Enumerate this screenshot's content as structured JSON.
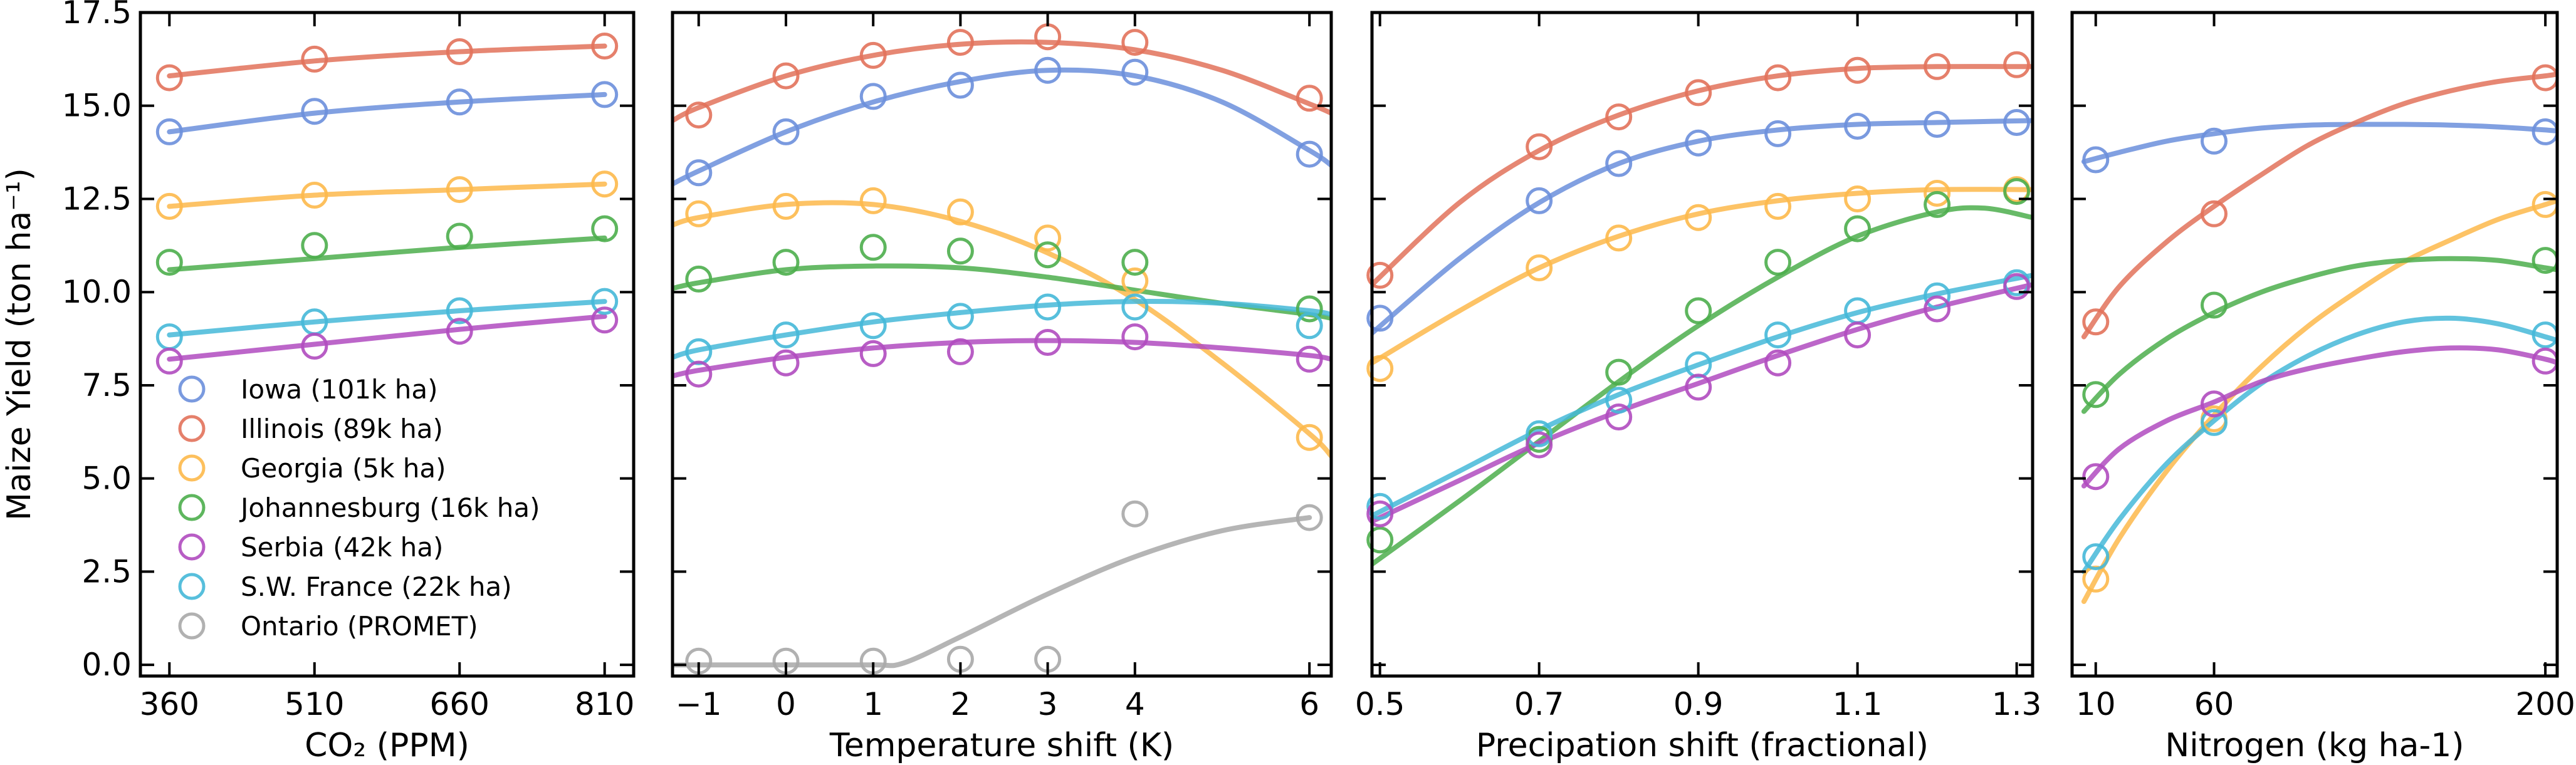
{
  "colors": {
    "Iowa": "#6b8fdc",
    "Illinois": "#e2725b",
    "Georgia": "#fdb94b",
    "Johannesburg": "#4cae4c",
    "Serbia": "#b04bbf",
    "SW France": "#45b8d8",
    "Ontario": "#a8a8a8"
  },
  "legend": [
    {
      "key": "Iowa",
      "label": "Iowa (101k ha)"
    },
    {
      "key": "Illinois",
      "label": "Illinois (89k ha)"
    },
    {
      "key": "Georgia",
      "label": "Georgia (5k ha)"
    },
    {
      "key": "Johannesburg",
      "label": "Johannesburg (16k ha)"
    },
    {
      "key": "Serbia",
      "label": "Serbia (42k ha)"
    },
    {
      "key": "SW France",
      "label": "S.W. France (22k ha)"
    },
    {
      "key": "Ontario",
      "label": "Ontario (PROMET)"
    }
  ],
  "chart_data": [
    {
      "type": "scatter",
      "ylabel": "Maize Yield (ton ha⁻¹)",
      "xlabel": "CO₂ (PPM)",
      "xlim": [
        330,
        840
      ],
      "ylim": [
        -0.3,
        17.5
      ],
      "xticks": [
        360,
        510,
        660,
        810
      ],
      "yticks": [
        0.0,
        2.5,
        5.0,
        7.5,
        10.0,
        12.5,
        15.0,
        17.5
      ],
      "ytick_labels": [
        "0.0",
        "2.5",
        "5.0",
        "7.5",
        "10.0",
        "12.5",
        "15.0",
        "17.5"
      ],
      "series": [
        {
          "key": "Illinois",
          "x": [
            360,
            510,
            660,
            810
          ],
          "y": [
            15.75,
            16.25,
            16.45,
            16.6
          ],
          "fit_x": [
            360,
            510,
            660,
            810
          ],
          "fit_y": [
            15.8,
            16.2,
            16.45,
            16.6
          ]
        },
        {
          "key": "Iowa",
          "x": [
            360,
            510,
            660,
            810
          ],
          "y": [
            14.3,
            14.85,
            15.1,
            15.3
          ],
          "fit_x": [
            360,
            510,
            660,
            810
          ],
          "fit_y": [
            14.3,
            14.8,
            15.1,
            15.3
          ]
        },
        {
          "key": "Georgia",
          "x": [
            360,
            510,
            660,
            810
          ],
          "y": [
            12.3,
            12.6,
            12.75,
            12.9
          ],
          "fit_x": [
            360,
            510,
            660,
            810
          ],
          "fit_y": [
            12.3,
            12.6,
            12.75,
            12.9
          ]
        },
        {
          "key": "Johannesburg",
          "x": [
            360,
            510,
            660,
            810
          ],
          "y": [
            10.8,
            11.25,
            11.5,
            11.7
          ],
          "fit_x": [
            360,
            510,
            660,
            810
          ],
          "fit_y": [
            10.6,
            10.9,
            11.2,
            11.45
          ]
        },
        {
          "key": "SW France",
          "x": [
            360,
            510,
            660,
            810
          ],
          "y": [
            8.8,
            9.2,
            9.5,
            9.75
          ],
          "fit_x": [
            360,
            510,
            660,
            810
          ],
          "fit_y": [
            8.85,
            9.2,
            9.5,
            9.75
          ]
        },
        {
          "key": "Serbia",
          "x": [
            360,
            510,
            660,
            810
          ],
          "y": [
            8.15,
            8.55,
            8.95,
            9.25
          ],
          "fit_x": [
            360,
            510,
            660,
            810
          ],
          "fit_y": [
            8.2,
            8.6,
            9.0,
            9.35
          ]
        }
      ]
    },
    {
      "type": "scatter",
      "xlabel": "Temperature shift (K)",
      "xlim": [
        -1.3,
        6.25
      ],
      "ylim": [
        -0.3,
        17.5
      ],
      "xticks": [
        -1,
        0,
        1,
        2,
        3,
        4,
        6
      ],
      "xtick_labels": [
        "−1",
        "0",
        "1",
        "2",
        "3",
        "4",
        "6"
      ],
      "series": [
        {
          "key": "Illinois",
          "x": [
            -1,
            0,
            1,
            2,
            3,
            4,
            6
          ],
          "y": [
            14.75,
            15.8,
            16.35,
            16.7,
            16.85,
            16.7,
            15.2
          ],
          "fit_x": [
            -1.3,
            -1,
            0,
            1,
            2,
            3,
            4,
            5,
            6,
            6.25
          ],
          "fit_y": [
            14.6,
            14.95,
            15.8,
            16.35,
            16.65,
            16.7,
            16.5,
            15.95,
            15.05,
            14.8
          ]
        },
        {
          "key": "Iowa",
          "x": [
            -1,
            0,
            1,
            2,
            3,
            4,
            6
          ],
          "y": [
            13.2,
            14.3,
            15.25,
            15.55,
            15.95,
            15.9,
            13.7
          ],
          "fit_x": [
            -1.3,
            -1,
            0,
            1,
            2,
            3,
            4,
            5,
            6,
            6.25
          ],
          "fit_y": [
            12.9,
            13.25,
            14.3,
            15.1,
            15.65,
            15.95,
            15.8,
            15.1,
            13.8,
            13.4
          ]
        },
        {
          "key": "Georgia",
          "x": [
            -1,
            0,
            1,
            2,
            3,
            4,
            6
          ],
          "y": [
            12.1,
            12.3,
            12.45,
            12.15,
            11.45,
            10.3,
            6.1
          ],
          "fit_x": [
            -1.3,
            -1,
            0,
            1,
            2,
            3,
            4,
            5,
            6,
            6.25
          ],
          "fit_y": [
            11.8,
            12.0,
            12.35,
            12.35,
            11.9,
            11.05,
            9.8,
            8.1,
            6.2,
            5.6
          ]
        },
        {
          "key": "Johannesburg",
          "x": [
            -1,
            0,
            1,
            2,
            3,
            4,
            6
          ],
          "y": [
            10.35,
            10.8,
            11.2,
            11.1,
            11.0,
            10.8,
            9.55
          ],
          "fit_x": [
            -1.3,
            -1,
            0,
            1,
            2,
            3,
            4,
            5,
            6,
            6.25
          ],
          "fit_y": [
            10.1,
            10.25,
            10.6,
            10.7,
            10.65,
            10.4,
            10.05,
            9.7,
            9.4,
            9.3
          ]
        },
        {
          "key": "SW France",
          "x": [
            -1,
            0,
            1,
            2,
            3,
            4,
            6
          ],
          "y": [
            8.4,
            8.85,
            9.1,
            9.35,
            9.6,
            9.6,
            9.1
          ],
          "fit_x": [
            -1.3,
            -1,
            0,
            1,
            2,
            3,
            4,
            5,
            6,
            6.25
          ],
          "fit_y": [
            8.25,
            8.45,
            8.85,
            9.2,
            9.45,
            9.65,
            9.75,
            9.7,
            9.5,
            9.4
          ]
        },
        {
          "key": "Serbia",
          "x": [
            -1,
            0,
            1,
            2,
            3,
            4,
            6
          ],
          "y": [
            7.8,
            8.1,
            8.35,
            8.4,
            8.65,
            8.8,
            8.2
          ],
          "fit_x": [
            -1.3,
            -1,
            0,
            1,
            2,
            3,
            4,
            5,
            6,
            6.25
          ],
          "fit_y": [
            7.75,
            7.9,
            8.25,
            8.5,
            8.65,
            8.7,
            8.65,
            8.5,
            8.3,
            8.2
          ]
        },
        {
          "key": "Ontario",
          "x": [
            -1,
            0,
            1,
            2,
            3,
            4,
            6
          ],
          "y": [
            0.1,
            0.1,
            0.1,
            0.15,
            0.15,
            4.05,
            3.95
          ],
          "fit_x": [
            -1.3,
            0,
            1,
            1.35,
            2,
            3,
            4,
            5,
            6
          ],
          "fit_y": [
            0.0,
            0.0,
            0.0,
            0.05,
            0.75,
            1.9,
            2.9,
            3.6,
            3.95
          ]
        }
      ]
    },
    {
      "type": "scatter",
      "xlabel": "Precipation shift (fractional)",
      "xlim": [
        0.49,
        1.32
      ],
      "ylim": [
        -0.3,
        17.5
      ],
      "xticks": [
        0.5,
        0.7,
        0.9,
        1.1,
        1.3
      ],
      "xtick_labels": [
        "0.5",
        "0.7",
        "0.9",
        "1.1",
        "1.3"
      ],
      "series": [
        {
          "key": "Illinois",
          "x": [
            0.5,
            0.7,
            0.8,
            0.9,
            1.0,
            1.1,
            1.2,
            1.3
          ],
          "y": [
            10.45,
            13.9,
            14.7,
            15.35,
            15.75,
            15.95,
            16.05,
            16.1
          ],
          "fit_x": [
            0.49,
            0.6,
            0.7,
            0.8,
            0.9,
            1.0,
            1.1,
            1.2,
            1.32
          ],
          "fit_y": [
            10.2,
            12.4,
            13.8,
            14.75,
            15.4,
            15.8,
            16.0,
            16.05,
            16.05
          ]
        },
        {
          "key": "Iowa",
          "x": [
            0.5,
            0.7,
            0.8,
            0.9,
            1.0,
            1.1,
            1.2,
            1.3
          ],
          "y": [
            9.3,
            12.45,
            13.45,
            14.0,
            14.25,
            14.45,
            14.5,
            14.55
          ],
          "fit_x": [
            0.49,
            0.6,
            0.7,
            0.8,
            0.9,
            1.0,
            1.1,
            1.2,
            1.32
          ],
          "fit_y": [
            8.9,
            10.9,
            12.4,
            13.45,
            14.05,
            14.35,
            14.5,
            14.55,
            14.6
          ]
        },
        {
          "key": "Georgia",
          "x": [
            0.5,
            0.7,
            0.8,
            0.9,
            1.0,
            1.1,
            1.2,
            1.3
          ],
          "y": [
            7.95,
            10.65,
            11.45,
            12.0,
            12.3,
            12.5,
            12.65,
            12.75
          ],
          "fit_x": [
            0.49,
            0.6,
            0.7,
            0.8,
            0.9,
            1.0,
            1.1,
            1.2,
            1.32
          ],
          "fit_y": [
            8.1,
            9.5,
            10.65,
            11.5,
            12.1,
            12.45,
            12.65,
            12.75,
            12.75
          ]
        },
        {
          "key": "Johannesburg",
          "x": [
            0.5,
            0.7,
            0.8,
            0.9,
            1.0,
            1.1,
            1.2,
            1.3
          ],
          "y": [
            3.35,
            6.05,
            7.85,
            9.5,
            10.8,
            11.7,
            12.35,
            12.7
          ],
          "fit_x": [
            0.49,
            0.6,
            0.7,
            0.8,
            0.9,
            1.0,
            1.1,
            1.2,
            1.26,
            1.32
          ],
          "fit_y": [
            2.7,
            4.4,
            6.0,
            7.6,
            9.1,
            10.4,
            11.5,
            12.15,
            12.25,
            12.0
          ]
        },
        {
          "key": "SW France",
          "x": [
            0.5,
            0.7,
            0.8,
            0.9,
            1.0,
            1.1,
            1.2,
            1.3
          ],
          "y": [
            4.25,
            6.2,
            7.1,
            8.05,
            8.85,
            9.5,
            9.9,
            10.25
          ],
          "fit_x": [
            0.49,
            0.6,
            0.7,
            0.8,
            0.9,
            1.0,
            1.1,
            1.2,
            1.32
          ],
          "fit_y": [
            4.0,
            5.2,
            6.3,
            7.25,
            8.05,
            8.8,
            9.45,
            9.95,
            10.45
          ]
        },
        {
          "key": "Serbia",
          "x": [
            0.5,
            0.7,
            0.8,
            0.9,
            1.0,
            1.1,
            1.2,
            1.3
          ],
          "y": [
            4.05,
            5.9,
            6.65,
            7.45,
            8.1,
            8.85,
            9.55,
            10.15
          ],
          "fit_x": [
            0.49,
            0.6,
            0.7,
            0.8,
            0.9,
            1.0,
            1.1,
            1.2,
            1.32
          ],
          "fit_y": [
            3.85,
            4.95,
            5.95,
            6.8,
            7.55,
            8.3,
            9.0,
            9.6,
            10.2
          ]
        }
      ]
    },
    {
      "type": "scatter",
      "xlabel": "Nitrogen (kg ha-1)",
      "xlim": [
        0,
        205
      ],
      "ylim": [
        -0.3,
        17.5
      ],
      "xticks": [
        10,
        60,
        200
      ],
      "xtick_labels": [
        "10",
        "60",
        "200"
      ],
      "series": [
        {
          "key": "Iowa",
          "x": [
            10,
            60,
            200
          ],
          "y": [
            13.55,
            14.05,
            14.3
          ],
          "fit_x": [
            5,
            20,
            40,
            60,
            80,
            100,
            120,
            140,
            160,
            180,
            200,
            205
          ],
          "fit_y": [
            13.5,
            13.75,
            14.05,
            14.25,
            14.4,
            14.48,
            14.5,
            14.5,
            14.48,
            14.43,
            14.35,
            14.32
          ]
        },
        {
          "key": "Illinois",
          "x": [
            10,
            60,
            200
          ],
          "y": [
            9.2,
            12.1,
            15.75
          ],
          "fit_x": [
            5,
            20,
            40,
            60,
            80,
            100,
            120,
            140,
            160,
            180,
            200,
            205
          ],
          "fit_y": [
            8.8,
            10.15,
            11.35,
            12.3,
            13.15,
            13.95,
            14.55,
            15.05,
            15.4,
            15.65,
            15.8,
            15.85
          ]
        },
        {
          "key": "Georgia",
          "x": [
            10,
            60,
            200
          ],
          "y": [
            2.3,
            6.6,
            12.35
          ],
          "fit_x": [
            5,
            20,
            40,
            60,
            80,
            100,
            120,
            140,
            160,
            180,
            200,
            205
          ],
          "fit_y": [
            1.7,
            3.4,
            5.2,
            6.7,
            8.0,
            9.1,
            10.0,
            10.8,
            11.4,
            11.95,
            12.35,
            12.45
          ]
        },
        {
          "key": "Johannesburg",
          "x": [
            10,
            60,
            200
          ],
          "y": [
            7.25,
            9.65,
            10.85
          ],
          "fit_x": [
            5,
            20,
            40,
            60,
            80,
            100,
            120,
            140,
            160,
            180,
            200,
            205
          ],
          "fit_y": [
            6.8,
            7.8,
            8.75,
            9.45,
            10.0,
            10.4,
            10.7,
            10.85,
            10.9,
            10.85,
            10.65,
            10.6
          ]
        },
        {
          "key": "SW France",
          "x": [
            10,
            60,
            200
          ],
          "y": [
            2.9,
            6.5,
            8.85
          ],
          "fit_x": [
            5,
            20,
            40,
            60,
            80,
            100,
            120,
            140,
            160,
            180,
            200,
            205
          ],
          "fit_y": [
            2.5,
            3.9,
            5.4,
            6.55,
            7.55,
            8.3,
            8.85,
            9.2,
            9.3,
            9.15,
            8.8,
            8.7
          ]
        },
        {
          "key": "Serbia",
          "x": [
            10,
            60,
            200
          ],
          "y": [
            5.05,
            7.0,
            8.15
          ],
          "fit_x": [
            5,
            20,
            40,
            60,
            80,
            100,
            120,
            140,
            160,
            180,
            200,
            205
          ],
          "fit_y": [
            4.8,
            5.8,
            6.55,
            7.05,
            7.6,
            7.95,
            8.2,
            8.4,
            8.5,
            8.45,
            8.2,
            8.1
          ]
        }
      ]
    }
  ]
}
